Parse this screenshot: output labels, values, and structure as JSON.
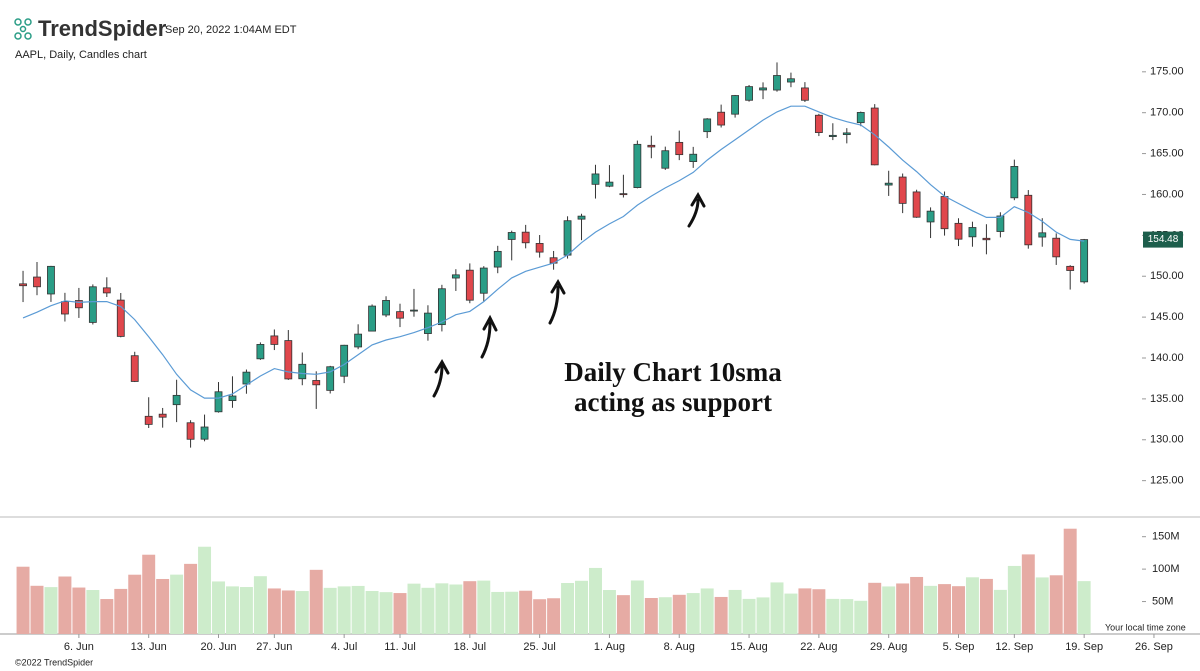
{
  "header": {
    "brand": "TrendSpider",
    "timestamp": "Sep 20, 2022 1:04AM EDT",
    "subtitle": "AAPL, Daily, Candles chart"
  },
  "footer": {
    "copyright": "©2022 TrendSpider",
    "timezone": "Your local time zone"
  },
  "chart_data": {
    "type": "candlestick",
    "open": [
      149.07,
      149.9,
      147.83,
      146.9,
      147.03,
      144.35,
      148.58,
      147.08,
      140.28,
      132.87,
      133.13,
      134.29,
      132.08,
      130.07,
      133.42,
      134.79,
      136.82,
      139.9,
      142.7,
      142.13,
      137.46,
      137.25,
      136.04,
      137.77,
      141.35,
      143.29,
      145.26,
      145.67,
      145.76,
      142.99,
      144.08,
      149.78,
      150.74,
      147.92,
      151.12,
      154.5,
      155.39,
      154.01,
      152.26,
      152.58,
      156.98,
      161.24,
      161.01,
      160.1,
      160.84,
      166.01,
      163.21,
      166.37,
      164.02,
      167.68,
      170.06,
      169.82,
      171.52,
      172.78,
      172.77,
      173.75,
      173.03,
      169.69,
      167.08,
      167.32,
      168.78,
      170.57,
      161.15,
      162.13,
      160.31,
      156.64,
      159.75,
      156.47,
      154.82,
      154.64,
      155.47,
      159.59,
      159.9,
      154.79,
      154.65,
      151.21,
      149.31
    ],
    "high": [
      150.66,
      151.74,
      151.27,
      147.97,
      148.57,
      149,
      149.87,
      147.95,
      140.76,
      135.2,
      133.89,
      137.34,
      132.39,
      133.08,
      137.06,
      137.76,
      138.59,
      141.91,
      143.49,
      143.42,
      140.67,
      138.37,
      139.04,
      141.61,
      144.12,
      146.55,
      147.55,
      146.64,
      148.45,
      146.45,
      148.95,
      150.86,
      151.57,
      151.23,
      153.72,
      155.57,
      156.28,
      155.04,
      153.09,
      157.33,
      157.64,
      163.63,
      163.59,
      162.41,
      166.59,
      167.19,
      165.85,
      167.81,
      165.82,
      169.34,
      170.99,
      172.17,
      173.39,
      173.71,
      176.15,
      174.9,
      173.74,
      169.86,
      168.71,
      168.11,
      170.14,
      171.05,
      162.9,
      162.56,
      160.58,
      158.42,
      160.36,
      157.09,
      156.67,
      156.36,
      157.82,
      164.26,
      160.54,
      157.1,
      155.24,
      151.35,
      154.56
    ],
    "low": [
      146.84,
      147.68,
      146.86,
      144.46,
      144.9,
      144.1,
      147.46,
      142.53,
      137.06,
      131.44,
      131.48,
      132.16,
      129.04,
      129.81,
      133.32,
      133.91,
      135.63,
      139.77,
      140.97,
      137.32,
      136.67,
      133.77,
      135.66,
      136.93,
      141.08,
      143.28,
      145,
      143.78,
      145.05,
      142.12,
      143.25,
      148.2,
      146.7,
      146.91,
      150.37,
      151.94,
      153.41,
      152.28,
      150.8,
      152.16,
      154.41,
      159.5,
      160.89,
      159.63,
      160.75,
      164.43,
      163,
      164.2,
      163.25,
      166.9,
      168.19,
      169.4,
      171.35,
      171.66,
      172.57,
      173.12,
      171.31,
      167.14,
      166.65,
      166.25,
      168.35,
      163.56,
      159.82,
      157.72,
      157.14,
      154.67,
      154.97,
      153.69,
      153.61,
      152.68,
      154.75,
      159.3,
      153.37,
      153.61,
      151.38,
      148.37,
      149.1
    ],
    "close": [
      148.84,
      148.71,
      151.21,
      145.38,
      146.14,
      148.71,
      147.96,
      142.64,
      137.13,
      131.88,
      132.76,
      135.43,
      130.06,
      131.56,
      135.87,
      135.35,
      138.27,
      141.66,
      141.66,
      137.44,
      139.23,
      136.72,
      138.93,
      141.56,
      142.92,
      146.35,
      147.04,
      144.87,
      145.86,
      145.49,
      148.47,
      150.17,
      147.07,
      151,
      153.04,
      155.35,
      154.09,
      152.95,
      151.6,
      156.79,
      157.35,
      162.51,
      161.51,
      160.01,
      166.13,
      165.81,
      165.35,
      164.87,
      164.92,
      169.24,
      168.49,
      172.1,
      173.19,
      173.03,
      174.55,
      174.15,
      171.52,
      167.57,
      167.23,
      167.53,
      170.03,
      163.62,
      161.38,
      158.91,
      157.22,
      157.96,
      155.81,
      154.53,
      155.96,
      154.46,
      157.37,
      163.43,
      153.84,
      155.31,
      152.37,
      150.7,
      154.48
    ],
    "colors": {
      "up": "#2a9d86",
      "down": "#e0474c",
      "up_volume": "#cdeccb",
      "down_volume": "#e6aba4",
      "sma": "#5b9bd5"
    },
    "last_price_label": "154.48",
    "sma": {
      "values": [
        144.9,
        145.6,
        146.4,
        147.0,
        146.8,
        146.9,
        146.9,
        146.3,
        144.7,
        142.6,
        140.4,
        138.0,
        136.1,
        135.1,
        135.1,
        135.6,
        136.7,
        137.8,
        138.7,
        138.3,
        138.1,
        138.0,
        138.3,
        139.2,
        140.4,
        141.6,
        142.2,
        142.6,
        143.1,
        143.7,
        144.4,
        145.3,
        145.7,
        146.9,
        148.4,
        149.8,
        150.6,
        151.1,
        151.6,
        152.6,
        154.1,
        155.4,
        156.4,
        157.3,
        158.7,
        159.8,
        160.8,
        161.7,
        162.7,
        164.2,
        165.5,
        166.7,
        167.9,
        169.1,
        170.1,
        170.8,
        170.8,
        170.1,
        169.4,
        168.9,
        168.5,
        167.3,
        165.8,
        164.2,
        162.8,
        161.2,
        159.8,
        158.9,
        158.0,
        157.2,
        157.2,
        158.5,
        157.8,
        156.7,
        155.4,
        154.5,
        154.3
      ]
    },
    "volume": {
      "values": [
        103.7,
        74.3,
        72.3,
        88.6,
        71.6,
        67.8,
        53.9,
        69.5,
        91.4,
        122.2,
        84.8,
        91.5,
        108.1,
        134.5,
        81.0,
        73.4,
        72.4,
        89.1,
        70.2,
        67.1,
        66.2,
        98.9,
        71.1,
        73.4,
        74.1,
        66.3,
        64.5,
        63.1,
        77.6,
        71.2,
        78.1,
        76.3,
        81.4,
        82.3,
        64.8,
        65.1,
        66.7,
        53.6,
        55.1,
        78.6,
        82.0,
        101.8,
        67.8,
        59.9,
        82.5,
        55.5,
        56.7,
        60.4,
        63.1,
        70.2,
        57.1,
        67.9,
        54.1,
        56.4,
        79.5,
        62.3,
        70.3,
        69.0,
        54.1,
        53.8,
        51.2,
        78.9,
        73.3,
        77.9,
        87.9,
        74.2,
        76.9,
        73.7,
        87.4,
        84.9,
        68.0,
        104.9,
        122.7,
        87.2,
        90.5,
        162.3,
        81.5
      ],
      "ylim": [
        0,
        168
      ],
      "yticks": [
        {
          "value": 50,
          "label": "50M"
        },
        {
          "value": 100,
          "label": "100M"
        },
        {
          "value": 150,
          "label": "150M"
        }
      ]
    },
    "xlim": [
      -1.65,
      80
    ],
    "xticks": [
      {
        "value": 4,
        "label": "6. Jun"
      },
      {
        "value": 9,
        "label": "13. Jun"
      },
      {
        "value": 14,
        "label": "20. Jun"
      },
      {
        "value": 18,
        "label": "27. Jun"
      },
      {
        "value": 23,
        "label": "4. Jul"
      },
      {
        "value": 27,
        "label": "11. Jul"
      },
      {
        "value": 32,
        "label": "18. Jul"
      },
      {
        "value": 37,
        "label": "25. Jul"
      },
      {
        "value": 42,
        "label": "1. Aug"
      },
      {
        "value": 47,
        "label": "8. Aug"
      },
      {
        "value": 52,
        "label": "15. Aug"
      },
      {
        "value": 57,
        "label": "22. Aug"
      },
      {
        "value": 62,
        "label": "29. Aug"
      },
      {
        "value": 67,
        "label": "5. Sep"
      },
      {
        "value": 71,
        "label": "12. Sep"
      },
      {
        "value": 76,
        "label": "19. Sep"
      },
      {
        "value": 81,
        "label": "26. Sep"
      }
    ],
    "ylim": [
      123,
      176.2
    ],
    "yticks": [
      {
        "value": 125,
        "label": "125.00"
      },
      {
        "value": 130,
        "label": "130.00"
      },
      {
        "value": 135,
        "label": "135.00"
      },
      {
        "value": 140,
        "label": "140.00"
      },
      {
        "value": 145,
        "label": "145.00"
      },
      {
        "value": 150,
        "label": "150.00"
      },
      {
        "value": 155,
        "label": "155.00"
      },
      {
        "value": 160,
        "label": "160.00"
      },
      {
        "value": 165,
        "label": "165.00"
      },
      {
        "value": 170,
        "label": "170.00"
      },
      {
        "value": 175,
        "label": "175.00"
      }
    ],
    "annotation": [
      "Daily Chart 10sma",
      "acting as support"
    ]
  }
}
